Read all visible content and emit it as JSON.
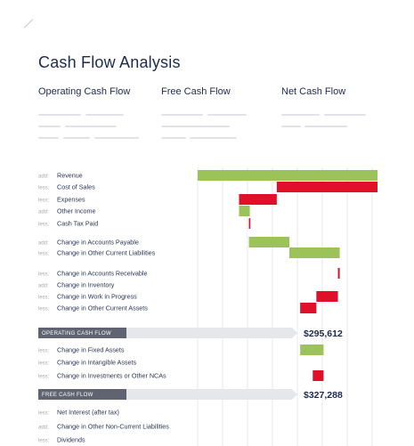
{
  "title": "Cash Flow Analysis",
  "column_headers": [
    "Operating Cash Flow",
    "Free Cash Flow",
    "Net Cash Flow"
  ],
  "colors": {
    "increase": "#9cc25a",
    "decrease": "#e0102a",
    "band": "#5f6470",
    "band_arrow": "#e6e7ea"
  },
  "chart_data": {
    "type": "bar",
    "subtype": "waterfall",
    "title": "Cash Flow Analysis",
    "xlabel": "",
    "ylabel": "",
    "rows": [
      {
        "tag": "add:",
        "label": "Revenue",
        "start": 0,
        "end": 100
      },
      {
        "tag": "less:",
        "label": "Cost of Sales",
        "start": 100,
        "end": 44
      },
      {
        "tag": "less:",
        "label": "Expenses",
        "start": 44,
        "end": 23
      },
      {
        "tag": "add:",
        "label": "Other Income",
        "start": 23,
        "end": 29
      },
      {
        "tag": "less:",
        "label": "Cash Tax Paid",
        "start": 29,
        "end": 28.5
      },
      {
        "tag": "add:",
        "label": "Change in Accounts Payable",
        "start": 28.5,
        "end": 51
      },
      {
        "tag": "less:",
        "label": "Change in Other Current Liabilities",
        "start": 51,
        "end": 79
      },
      {
        "tag": "less:",
        "label": "Change in Accounts Receivable",
        "start": 79,
        "end": 78
      },
      {
        "tag": "add:",
        "label": "Change in Inventory",
        "start": 78,
        "end": 78
      },
      {
        "tag": "less:",
        "label": "Change in Work in Progress",
        "start": 78,
        "end": 66
      },
      {
        "tag": "less:",
        "label": "Change in Other Current Assets",
        "start": 66,
        "end": 57
      },
      {
        "band": "OPERATING CASH FLOW",
        "total": "$295,612"
      },
      {
        "tag": "less:",
        "label": "Change in Fixed Assets",
        "start": 57,
        "end": 70
      },
      {
        "tag": "less:",
        "label": "Change in Intangible Assets",
        "start": 70,
        "end": 70
      },
      {
        "tag": "less:",
        "label": "Change in Investments or Other NCAs",
        "start": 70,
        "end": 64
      },
      {
        "band": "FREE CASH FLOW",
        "total": "$327,288"
      },
      {
        "tag": "less:",
        "label": "Net Interest (after tax)",
        "start": 64,
        "end": 64
      },
      {
        "tag": "add:",
        "label": "Change in Other Non-Current Liabilities",
        "start": 64,
        "end": 64
      },
      {
        "tag": "less:",
        "label": "Dividends",
        "start": 64,
        "end": 64
      }
    ]
  }
}
